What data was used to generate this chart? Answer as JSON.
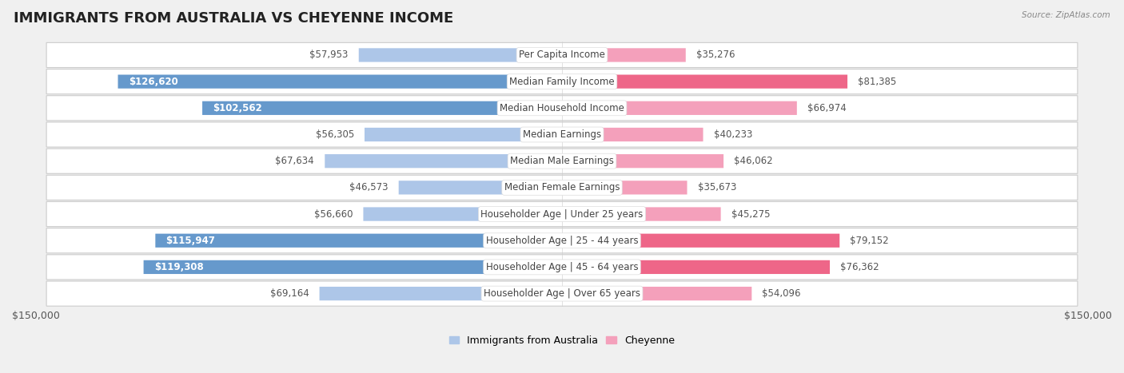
{
  "title": "IMMIGRANTS FROM AUSTRALIA VS CHEYENNE INCOME",
  "source": "Source: ZipAtlas.com",
  "categories": [
    "Per Capita Income",
    "Median Family Income",
    "Median Household Income",
    "Median Earnings",
    "Median Male Earnings",
    "Median Female Earnings",
    "Householder Age | Under 25 years",
    "Householder Age | 25 - 44 years",
    "Householder Age | 45 - 64 years",
    "Householder Age | Over 65 years"
  ],
  "australia_values": [
    57953,
    126620,
    102562,
    56305,
    67634,
    46573,
    56660,
    115947,
    119308,
    69164
  ],
  "cheyenne_values": [
    35276,
    81385,
    66974,
    40233,
    46062,
    35673,
    45275,
    79152,
    76362,
    54096
  ],
  "australia_color_light": "#adc6e8",
  "australia_color_dark": "#6699cc",
  "cheyenne_color_light": "#f4a0bb",
  "cheyenne_color_dark": "#ee6688",
  "bar_height": 0.52,
  "xlim": 150000,
  "background_color": "#f0f0f0",
  "row_bg_color": "#ffffff",
  "label_fontsize": 8.5,
  "title_fontsize": 13,
  "axis_label_fontsize": 9,
  "legend_fontsize": 9,
  "value_inside_threshold_aus": 95000,
  "value_inside_threshold_che": 70000
}
